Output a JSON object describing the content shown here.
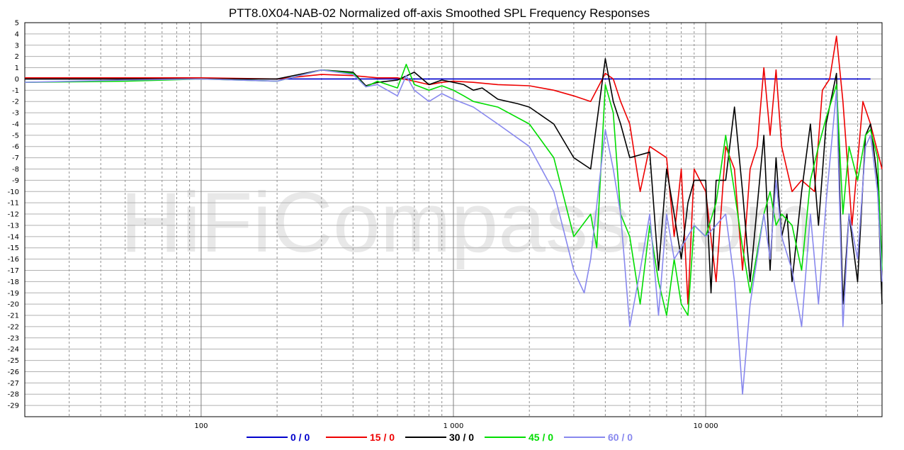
{
  "watermark": "HiFiCompass.com",
  "chart_data": {
    "type": "line",
    "title": "PTT8.0X04-NAB-02 Normalized off-axis Smoothed SPL Frequency Responses",
    "xlabel": "",
    "ylabel": "",
    "xscale": "log",
    "xlim": [
      20,
      50000
    ],
    "ylim": [
      -30,
      5
    ],
    "grid": true,
    "legend_position": "bottom-center",
    "x_tick_labels": [
      {
        "x": 100,
        "label": "100"
      },
      {
        "x": 1000,
        "label": "1 000"
      },
      {
        "x": 10000,
        "label": "10 000"
      }
    ],
    "y_ticks": [
      5,
      4,
      3,
      2,
      1,
      0,
      -1,
      -2,
      -3,
      -4,
      -5,
      -6,
      -7,
      -8,
      -9,
      -10,
      -11,
      -12,
      -13,
      -14,
      -15,
      -16,
      -17,
      -18,
      -19,
      -20,
      -21,
      -22,
      -23,
      -24,
      -25,
      -26,
      -27,
      -28,
      -29
    ],
    "series": [
      {
        "name": "0 / 0",
        "color": "#0000cc",
        "points": [
          [
            20,
            0
          ],
          [
            45000,
            0
          ]
        ]
      },
      {
        "name": "15 / 0",
        "color": "#ee0000",
        "points": [
          [
            20,
            0.1
          ],
          [
            50,
            0.1
          ],
          [
            100,
            0.1
          ],
          [
            200,
            0
          ],
          [
            300,
            0.4
          ],
          [
            400,
            0.3
          ],
          [
            500,
            0.1
          ],
          [
            600,
            0.1
          ],
          [
            700,
            -0.2
          ],
          [
            800,
            -0.5
          ],
          [
            900,
            -0.3
          ],
          [
            1000,
            -0.2
          ],
          [
            1200,
            -0.3
          ],
          [
            1500,
            -0.5
          ],
          [
            2000,
            -0.6
          ],
          [
            2500,
            -1
          ],
          [
            3000,
            -1.5
          ],
          [
            3500,
            -2
          ],
          [
            4000,
            0.5
          ],
          [
            4300,
            0
          ],
          [
            4600,
            -2
          ],
          [
            5000,
            -4
          ],
          [
            5500,
            -10
          ],
          [
            6000,
            -6
          ],
          [
            7000,
            -7
          ],
          [
            7500,
            -14
          ],
          [
            8000,
            -8
          ],
          [
            8500,
            -20
          ],
          [
            9000,
            -8
          ],
          [
            10000,
            -10
          ],
          [
            11000,
            -18
          ],
          [
            12000,
            -6
          ],
          [
            13000,
            -8
          ],
          [
            14000,
            -17
          ],
          [
            15000,
            -8
          ],
          [
            16000,
            -6
          ],
          [
            17000,
            1
          ],
          [
            18000,
            -5
          ],
          [
            19000,
            0.8
          ],
          [
            20000,
            -6
          ],
          [
            22000,
            -10
          ],
          [
            24000,
            -9
          ],
          [
            27000,
            -10
          ],
          [
            29000,
            -1
          ],
          [
            31000,
            0
          ],
          [
            33000,
            3.8
          ],
          [
            35000,
            -2
          ],
          [
            38000,
            -13
          ],
          [
            42000,
            -2
          ],
          [
            45000,
            -4
          ],
          [
            50000,
            -8
          ]
        ]
      },
      {
        "name": "30 / 0",
        "color": "#000000",
        "points": [
          [
            20,
            0
          ],
          [
            50,
            0
          ],
          [
            100,
            0
          ],
          [
            200,
            0
          ],
          [
            300,
            0.8
          ],
          [
            400,
            0.6
          ],
          [
            450,
            -0.6
          ],
          [
            500,
            -0.3
          ],
          [
            600,
            -0.1
          ],
          [
            700,
            0.6
          ],
          [
            800,
            -0.5
          ],
          [
            900,
            -0.1
          ],
          [
            1000,
            -0.3
          ],
          [
            1100,
            -0.5
          ],
          [
            1200,
            -1
          ],
          [
            1300,
            -0.8
          ],
          [
            1500,
            -1.8
          ],
          [
            1800,
            -2.2
          ],
          [
            2000,
            -2.5
          ],
          [
            2500,
            -4
          ],
          [
            3000,
            -7
          ],
          [
            3500,
            -8
          ],
          [
            4000,
            1.8
          ],
          [
            4300,
            -2
          ],
          [
            4600,
            -4
          ],
          [
            5000,
            -7
          ],
          [
            6000,
            -6.5
          ],
          [
            6500,
            -17
          ],
          [
            7000,
            -8
          ],
          [
            7500,
            -12
          ],
          [
            8000,
            -16
          ],
          [
            8500,
            -11
          ],
          [
            9000,
            -9
          ],
          [
            10000,
            -9
          ],
          [
            10500,
            -19
          ],
          [
            11000,
            -9
          ],
          [
            12000,
            -9
          ],
          [
            13000,
            -2.5
          ],
          [
            14000,
            -10
          ],
          [
            15000,
            -18
          ],
          [
            17000,
            -5
          ],
          [
            18000,
            -17
          ],
          [
            19000,
            -7
          ],
          [
            20000,
            -14
          ],
          [
            21000,
            -12
          ],
          [
            22000,
            -18
          ],
          [
            24000,
            -10
          ],
          [
            26000,
            -4
          ],
          [
            28000,
            -13
          ],
          [
            30000,
            -4
          ],
          [
            33000,
            0.5
          ],
          [
            35000,
            -20
          ],
          [
            37000,
            -12
          ],
          [
            40000,
            -18
          ],
          [
            43000,
            -5
          ],
          [
            45000,
            -4
          ],
          [
            48000,
            -9
          ],
          [
            50000,
            -20
          ]
        ]
      },
      {
        "name": "45 / 0",
        "color": "#00dd00",
        "points": [
          [
            20,
            -0.3
          ],
          [
            50,
            -0.2
          ],
          [
            100,
            0
          ],
          [
            200,
            -0.2
          ],
          [
            300,
            0.8
          ],
          [
            400,
            0.5
          ],
          [
            450,
            -0.7
          ],
          [
            500,
            -0.2
          ],
          [
            600,
            -0.8
          ],
          [
            650,
            1.3
          ],
          [
            700,
            -0.5
          ],
          [
            800,
            -1
          ],
          [
            900,
            -0.6
          ],
          [
            1000,
            -1
          ],
          [
            1100,
            -1.5
          ],
          [
            1200,
            -2
          ],
          [
            1500,
            -2.5
          ],
          [
            2000,
            -4
          ],
          [
            2500,
            -7
          ],
          [
            3000,
            -14
          ],
          [
            3500,
            -12
          ],
          [
            3700,
            -15
          ],
          [
            4000,
            -0.5
          ],
          [
            4300,
            -3
          ],
          [
            4600,
            -12
          ],
          [
            5000,
            -14
          ],
          [
            5500,
            -20
          ],
          [
            6000,
            -13
          ],
          [
            6500,
            -18
          ],
          [
            7000,
            -21
          ],
          [
            7500,
            -16
          ],
          [
            8000,
            -20
          ],
          [
            8500,
            -21
          ],
          [
            9000,
            -13
          ],
          [
            10000,
            -14
          ],
          [
            11000,
            -11
          ],
          [
            12000,
            -5
          ],
          [
            13000,
            -10
          ],
          [
            14000,
            -15
          ],
          [
            15000,
            -19
          ],
          [
            17000,
            -12
          ],
          [
            18000,
            -10
          ],
          [
            19000,
            -13
          ],
          [
            20000,
            -12
          ],
          [
            22000,
            -13
          ],
          [
            24000,
            -17
          ],
          [
            26000,
            -9
          ],
          [
            28000,
            -6
          ],
          [
            30000,
            -3.5
          ],
          [
            33000,
            -0.5
          ],
          [
            35000,
            -12
          ],
          [
            37000,
            -6
          ],
          [
            40000,
            -9
          ],
          [
            43000,
            -5
          ],
          [
            45000,
            -4.5
          ],
          [
            48000,
            -7
          ],
          [
            50000,
            -17
          ]
        ]
      },
      {
        "name": "60 / 0",
        "color": "#8888ee",
        "points": [
          [
            20,
            -0.3
          ],
          [
            50,
            -0.1
          ],
          [
            100,
            0
          ],
          [
            200,
            -0.2
          ],
          [
            300,
            0.8
          ],
          [
            400,
            0.4
          ],
          [
            450,
            -0.7
          ],
          [
            500,
            -0.5
          ],
          [
            600,
            -1.5
          ],
          [
            650,
            0.3
          ],
          [
            700,
            -1
          ],
          [
            800,
            -2
          ],
          [
            900,
            -1.3
          ],
          [
            1000,
            -1.8
          ],
          [
            1200,
            -2.5
          ],
          [
            1500,
            -4
          ],
          [
            2000,
            -6
          ],
          [
            2500,
            -10
          ],
          [
            3000,
            -17
          ],
          [
            3300,
            -19
          ],
          [
            3500,
            -16
          ],
          [
            4000,
            -4.5
          ],
          [
            4300,
            -8
          ],
          [
            4600,
            -12
          ],
          [
            5000,
            -22
          ],
          [
            5500,
            -17
          ],
          [
            6000,
            -12
          ],
          [
            6500,
            -21
          ],
          [
            7000,
            -12
          ],
          [
            7500,
            -16
          ],
          [
            8000,
            -15
          ],
          [
            9000,
            -13
          ],
          [
            10000,
            -14
          ],
          [
            11000,
            -13
          ],
          [
            12000,
            -12
          ],
          [
            13000,
            -18
          ],
          [
            14000,
            -28
          ],
          [
            15000,
            -20
          ],
          [
            17000,
            -12
          ],
          [
            18000,
            -16
          ],
          [
            19000,
            -9
          ],
          [
            20000,
            -14
          ],
          [
            22000,
            -17
          ],
          [
            24000,
            -22
          ],
          [
            26000,
            -12
          ],
          [
            28000,
            -20
          ],
          [
            30000,
            -11
          ],
          [
            33000,
            -1
          ],
          [
            35000,
            -22
          ],
          [
            37000,
            -12
          ],
          [
            40000,
            -16
          ],
          [
            43000,
            -6
          ],
          [
            45000,
            -5
          ],
          [
            48000,
            -10
          ],
          [
            50000,
            -18
          ]
        ]
      }
    ]
  }
}
